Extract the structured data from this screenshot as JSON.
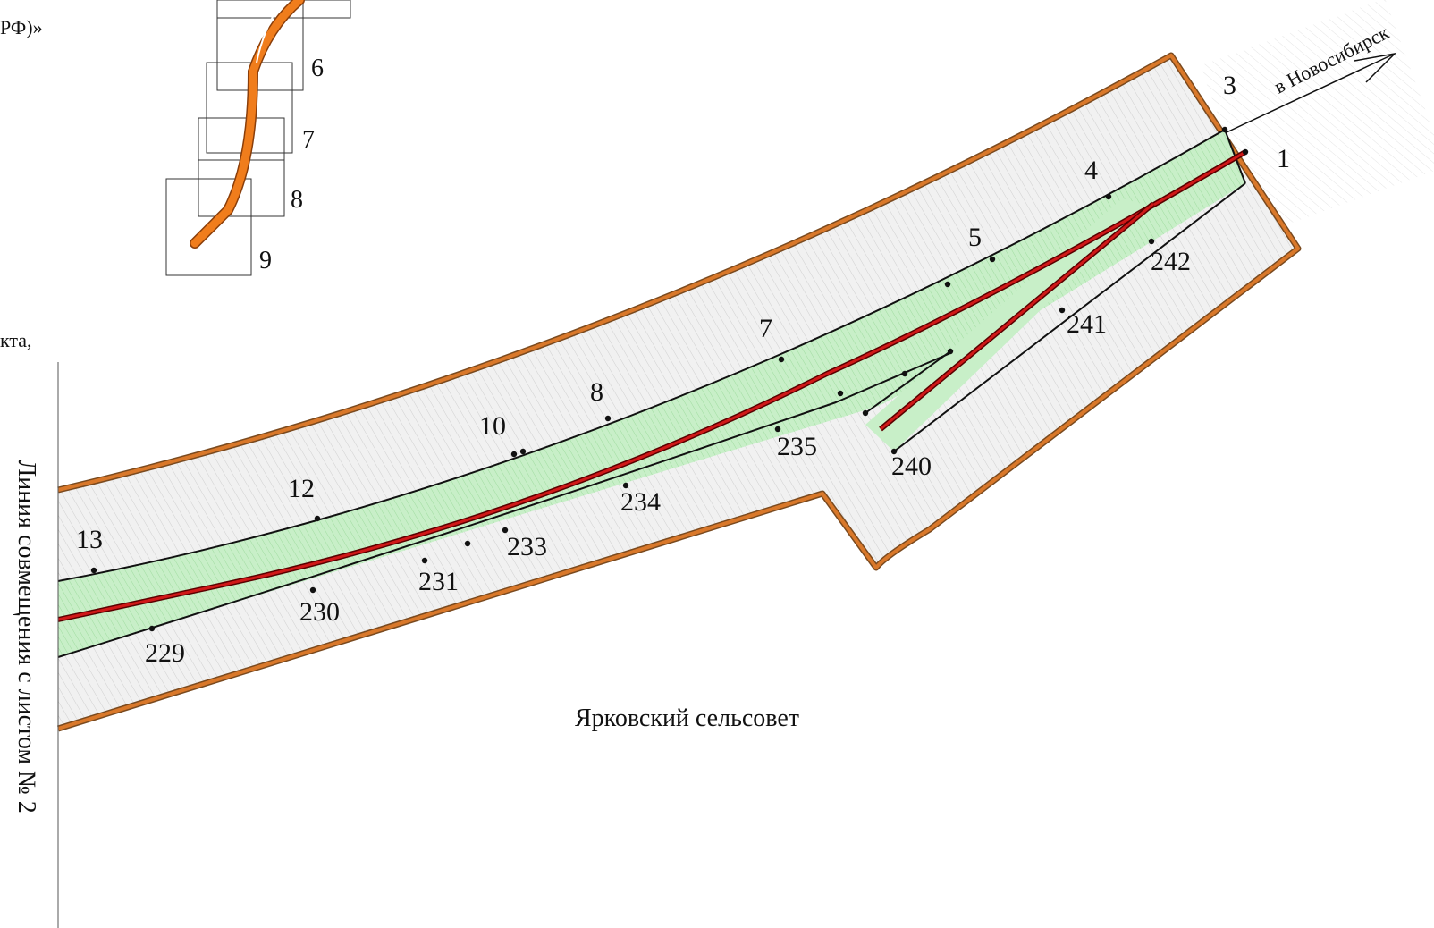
{
  "header_fragments": {
    "left_text": "РФ)»",
    "left_text_2": "кта,"
  },
  "index_map": {
    "sheet_numbers": [
      "6",
      "7",
      "8",
      "9"
    ]
  },
  "direction_label": "в Новосибирск",
  "match_line_label": "Линия совмещения с листом № 2",
  "area_label": "Ярковский сельсовет",
  "point_labels": [
    "1",
    "3",
    "4",
    "5",
    "7",
    "8",
    "10",
    "12",
    "13",
    "229",
    "230",
    "231",
    "233",
    "234",
    "235",
    "240",
    "241",
    "242"
  ],
  "colors": {
    "outer_boundary": "#d9782a",
    "outer_boundary_edge": "#7a4a1f",
    "strip_fill": "#c8efc8",
    "centerline": "#c41010",
    "zone_fill": "#f2f2f2",
    "index_route": "#f07d1c"
  }
}
